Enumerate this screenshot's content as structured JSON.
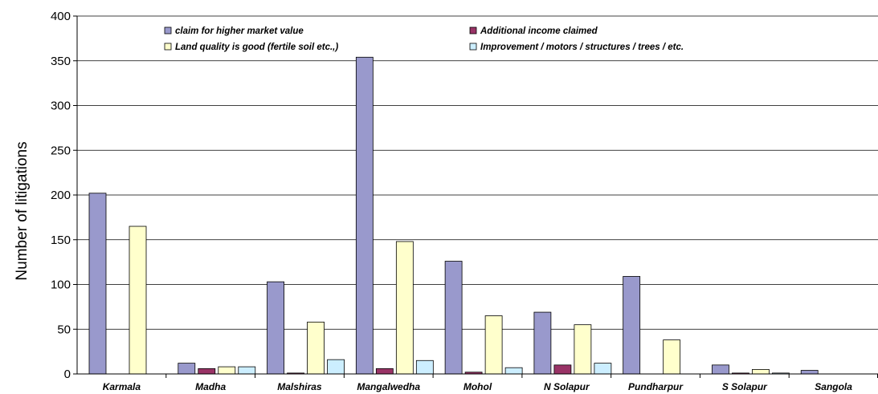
{
  "chart_data": {
    "type": "bar",
    "title": "",
    "xlabel": "",
    "ylabel": "Number of litigations",
    "ylim": [
      0,
      400
    ],
    "yticks": [
      0,
      50,
      100,
      150,
      200,
      250,
      300,
      350,
      400
    ],
    "grid": true,
    "legend_position": "top-center",
    "categories": [
      "Karmala",
      "Madha",
      "Malshiras",
      "Mangalwedha",
      "Mohol",
      "N Solapur",
      "Pundharpur",
      "S Solapur",
      "Sangola"
    ],
    "series": [
      {
        "name": "claim for higher market value",
        "color": "#9999cc",
        "values": [
          202,
          12,
          103,
          354,
          126,
          69,
          109,
          10,
          4
        ]
      },
      {
        "name": "Additional income claimed",
        "color": "#993366",
        "values": [
          0,
          6,
          1,
          6,
          2,
          10,
          0,
          1,
          0
        ]
      },
      {
        "name": "Land quality is good (fertile soil etc.,)",
        "color": "#ffffcc",
        "values": [
          165,
          8,
          58,
          148,
          65,
          55,
          38,
          5,
          0
        ]
      },
      {
        "name": "Improvement / motors / structures / trees / etc.",
        "color": "#cceeff",
        "values": [
          0,
          8,
          16,
          15,
          7,
          12,
          0,
          1,
          0
        ]
      }
    ]
  }
}
